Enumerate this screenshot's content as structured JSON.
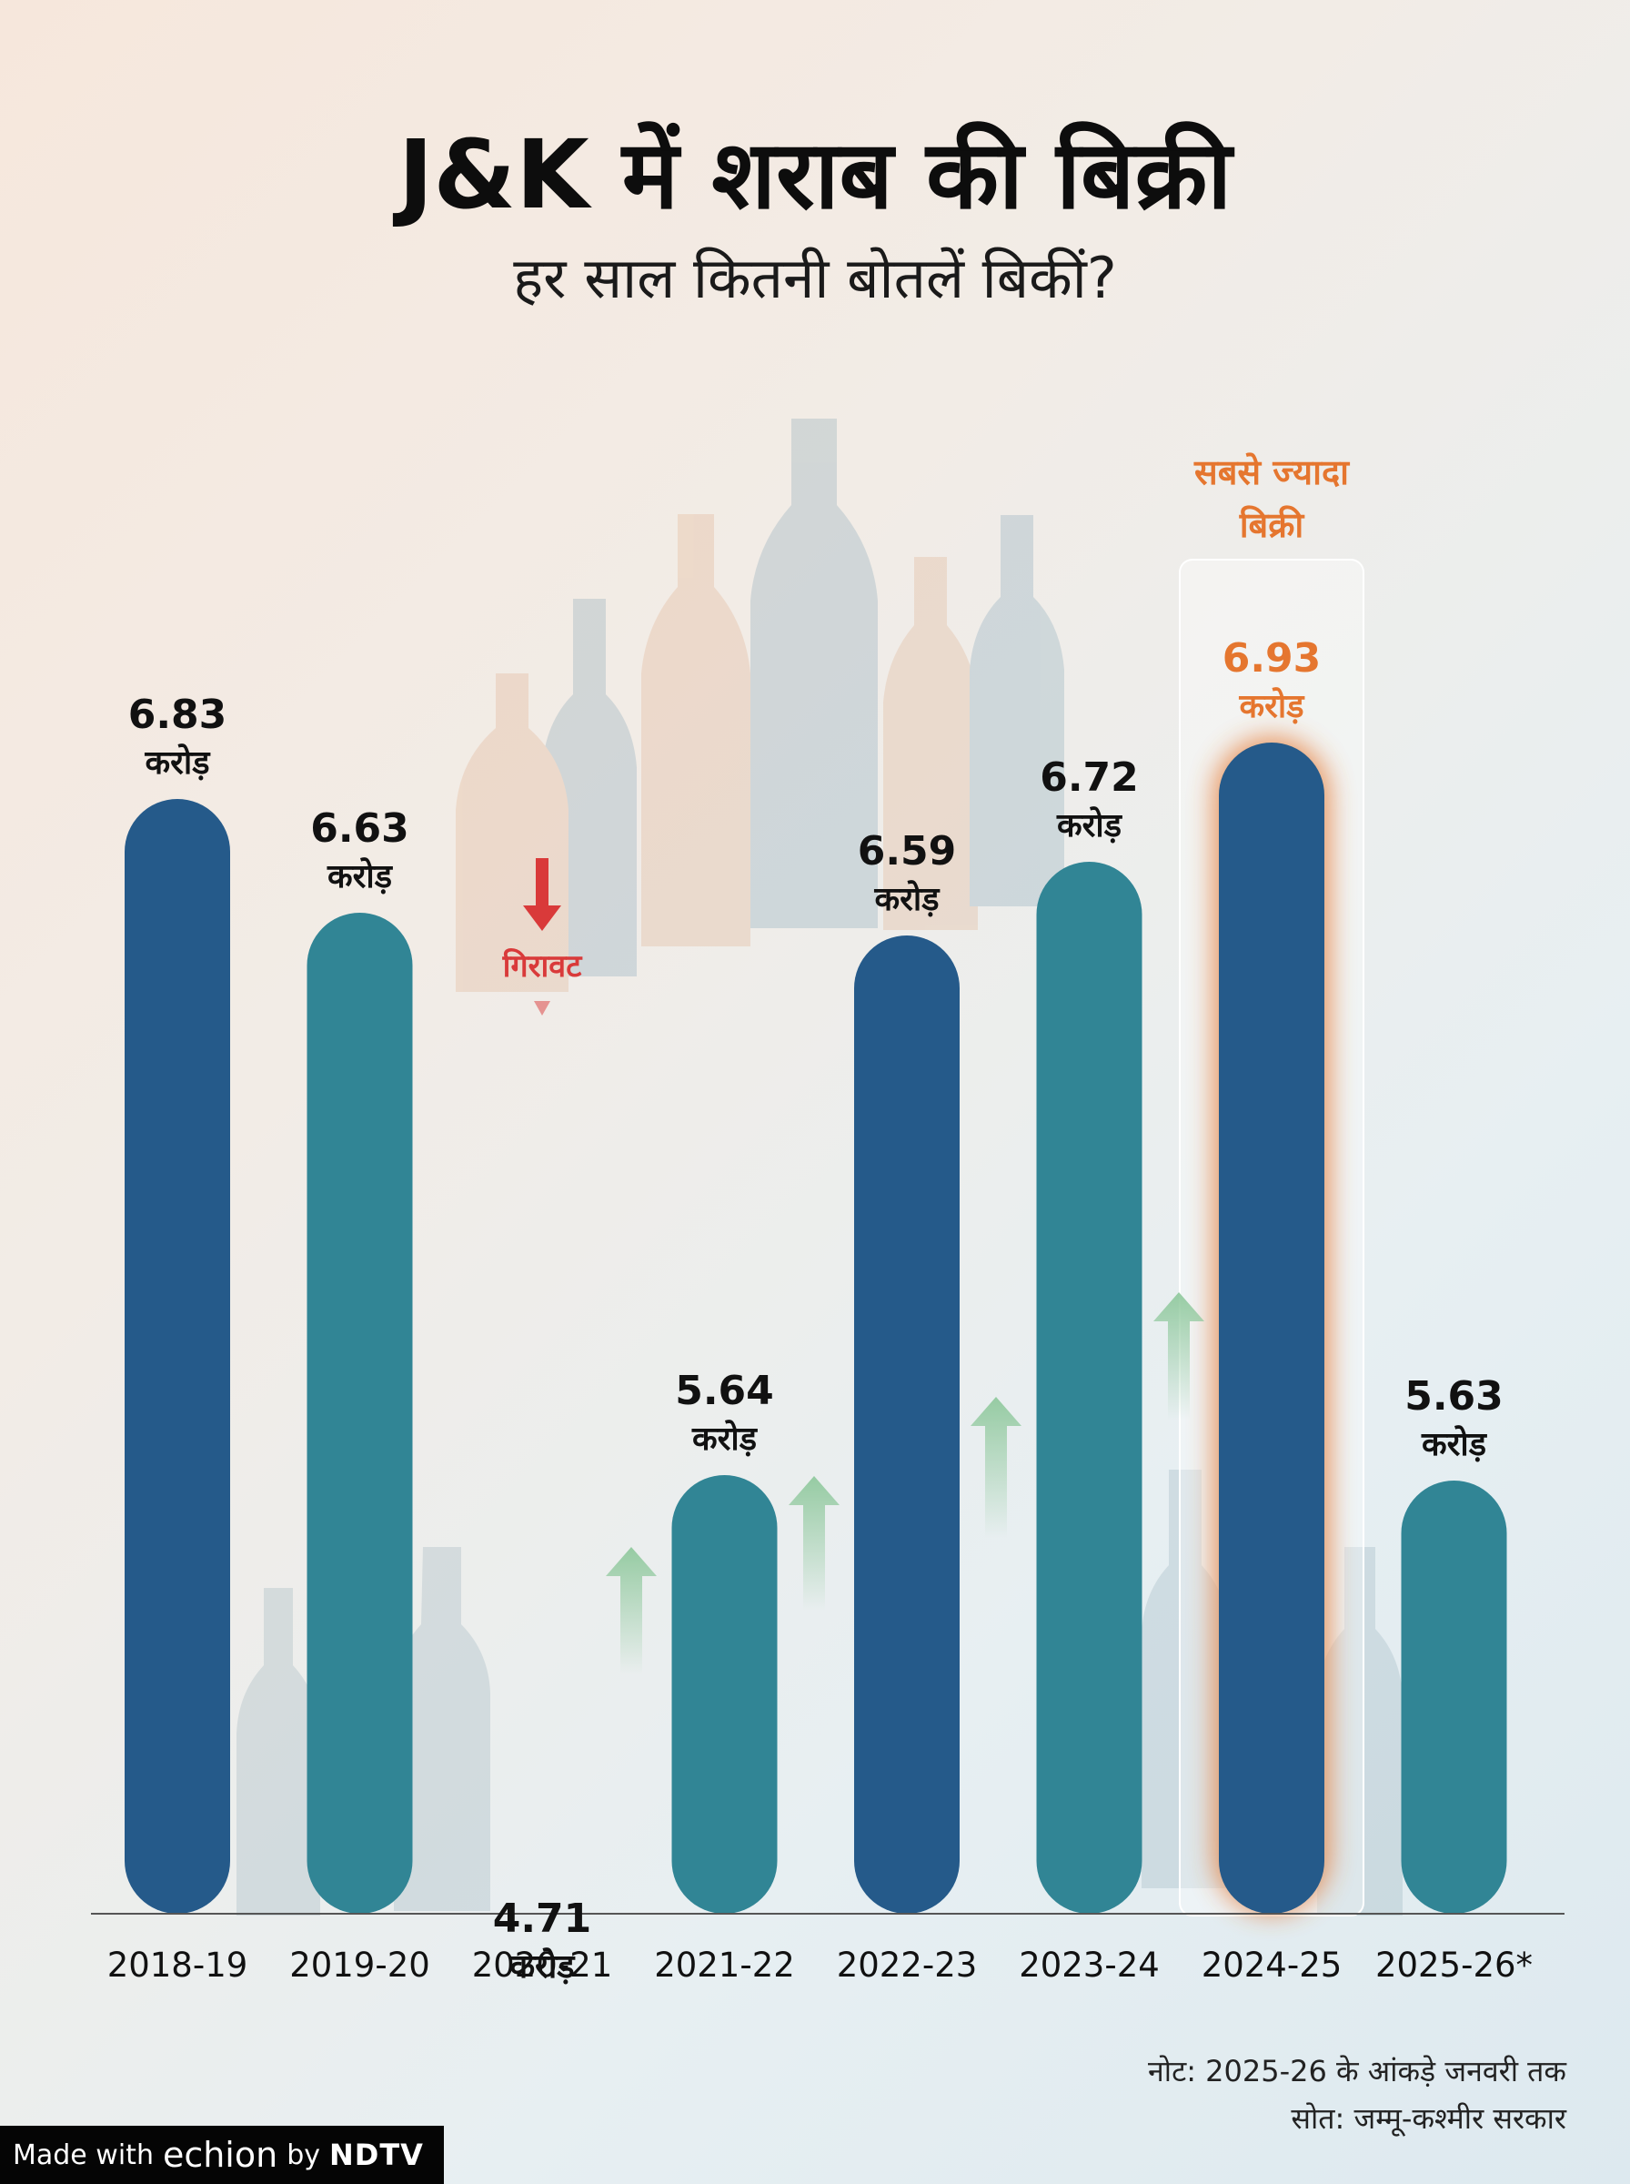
{
  "header": {
    "title": "J&K में शराब की बिक्री",
    "subtitle": "हर साल कितनी बोतलें बिकीं?"
  },
  "chart_data": {
    "type": "bar",
    "title": "J&K में शराब की बिक्री",
    "subtitle": "हर साल कितनी बोतलें बिकीं?",
    "categories": [
      "2018-19",
      "2019-20",
      "2020-21",
      "2021-22",
      "2022-23",
      "2023-24",
      "2024-25",
      "2025-26*"
    ],
    "values": [
      6.83,
      6.63,
      4.71,
      5.64,
      6.59,
      6.72,
      6.93,
      5.63
    ],
    "unit_label": "करोड़",
    "labels": [
      "6.83",
      "6.63",
      "4.71",
      "5.64",
      "6.59",
      "6.72",
      "6.93",
      "5.63"
    ],
    "bar_colors": [
      "#255a8a",
      "#318595",
      "#255a8a",
      "#318595",
      "#255a8a",
      "#318595",
      "#255a8a",
      "#318595"
    ],
    "highlight": {
      "index": 6,
      "label_line1": "सबसे ज्यादा",
      "label_line2": "बिक्री",
      "color": "#e5762f"
    },
    "drop_annotation": {
      "index": 2,
      "label": "गिरावट",
      "color": "#d93a3a"
    },
    "rise_arrow_color": "#8cc79a",
    "ylim": [
      0,
      8
    ]
  },
  "notes": {
    "note": "नोट: 2025-26 के आंकड़े जनवरी तक",
    "source": "सोत: जम्मू-कश्मीर सरकार"
  },
  "footer": {
    "made_with": "Made with",
    "echion": "echion",
    "by": "by",
    "brand": "NDTV"
  }
}
